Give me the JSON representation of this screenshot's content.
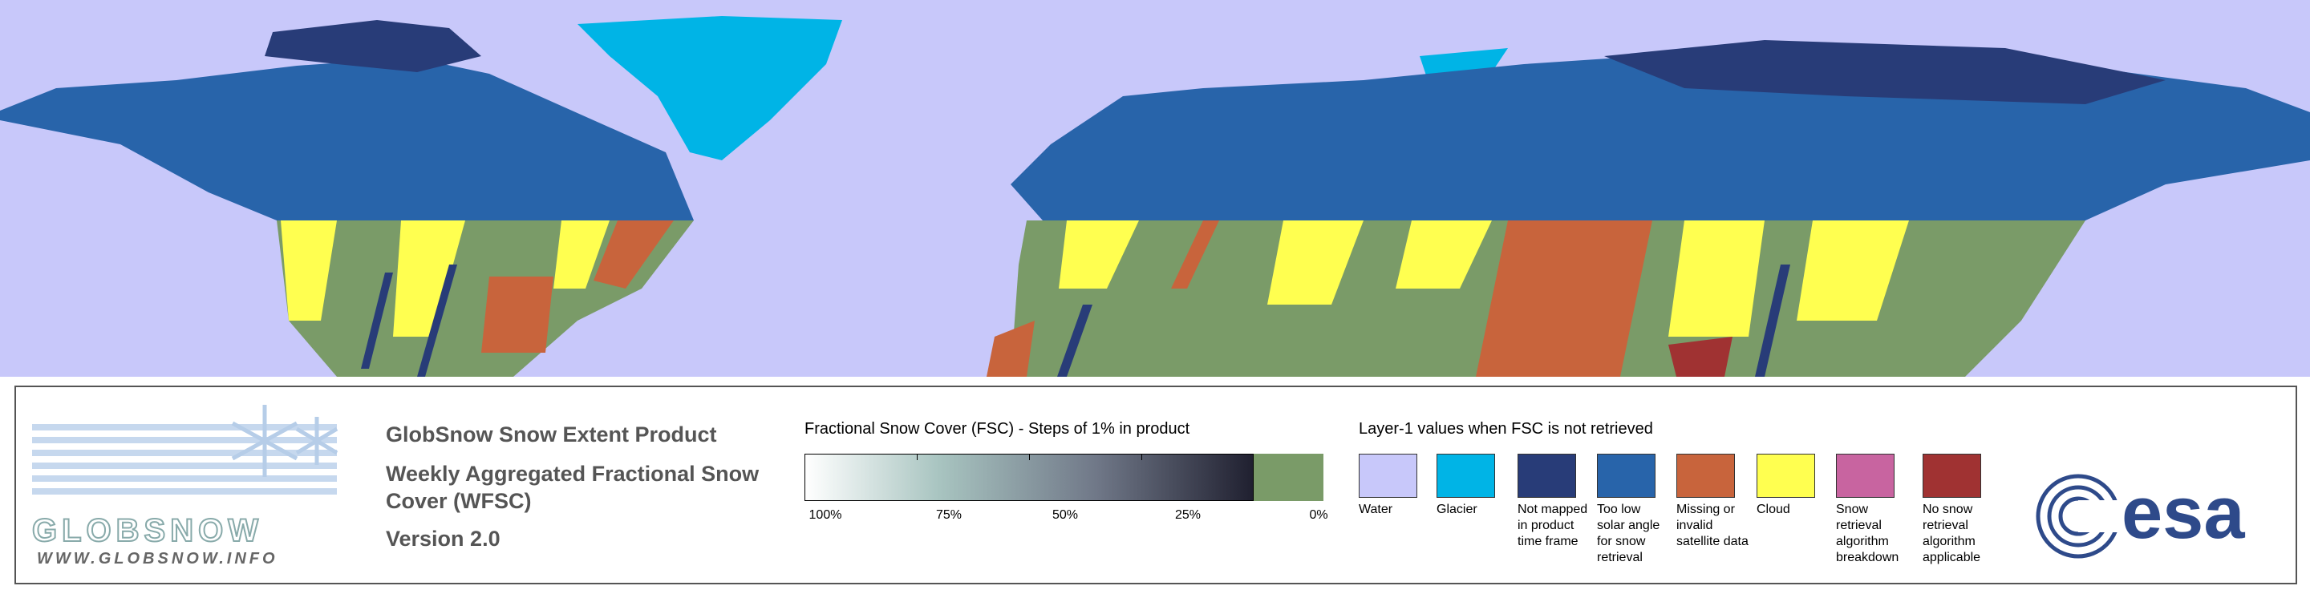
{
  "logo": {
    "name": "GLOBSNOW",
    "url": "WWW.GLOBSNOW.INFO"
  },
  "header": {
    "title": "GlobSnow Snow Extent Product",
    "subtitle": "Weekly Aggregated Fractional Snow Cover (WFSC)",
    "version": "Version 2.0"
  },
  "fsc_legend": {
    "title": "Fractional Snow Cover (FSC) - Steps of 1% in product",
    "tick_labels": [
      "100%",
      "75%",
      "50%",
      "25%",
      "0%"
    ]
  },
  "layer1_legend": {
    "title": "Layer-1 values when FSC is not retrieved",
    "items": [
      {
        "label": "Water",
        "color": "#c8c8fa"
      },
      {
        "label": "Glacier",
        "color": "#00b4e6"
      },
      {
        "label": "Not mapped in product time frame",
        "color": "#283c78"
      },
      {
        "label": "Too low solar angle for snow retrieval",
        "color": "#2864aa"
      },
      {
        "label": "Missing or invalid satellite data",
        "color": "#c8643c"
      },
      {
        "label": "Cloud",
        "color": "#ffff50"
      },
      {
        "label": "Snow retrieval algorithm breakdown",
        "color": "#c864a0"
      },
      {
        "label": "No snow retrieval algorithm applicable",
        "color": "#a03232"
      }
    ]
  },
  "agency_logo": "esa"
}
